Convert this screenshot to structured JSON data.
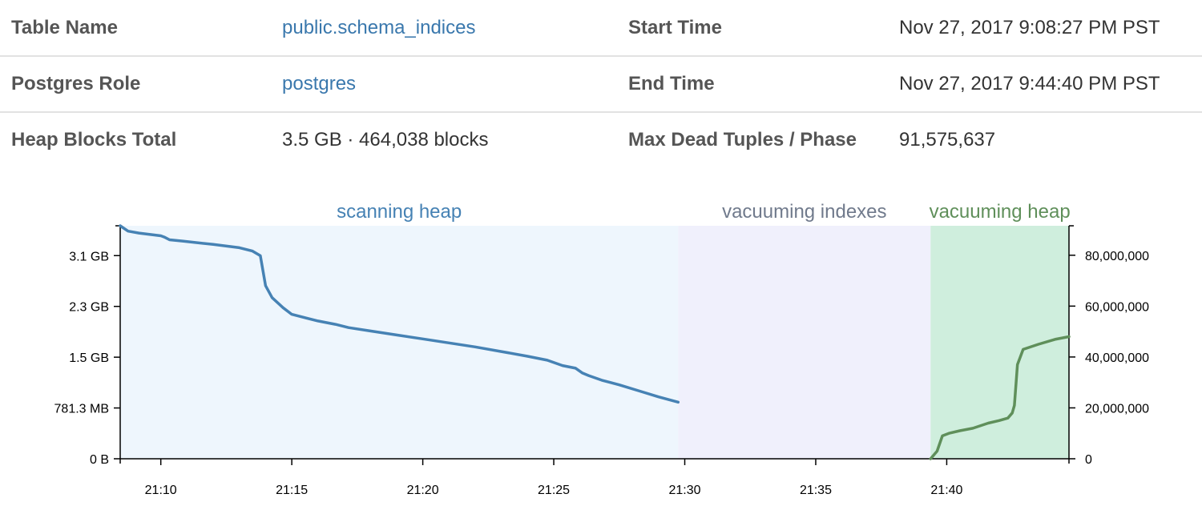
{
  "details": {
    "table_name_label": "Table Name",
    "table_name_value": "public.schema_indices",
    "start_time_label": "Start Time",
    "start_time_value": "Nov 27, 2017 9:08:27 PM PST",
    "postgres_role_label": "Postgres Role",
    "postgres_role_value": "postgres",
    "end_time_label": "End Time",
    "end_time_value": "Nov 27, 2017 9:44:40 PM PST",
    "heap_blocks_label": "Heap Blocks Total",
    "heap_blocks_value": "3.5 GB · 464,038 blocks",
    "max_dead_tuples_label": "Max Dead Tuples / Phase",
    "max_dead_tuples_value": "91,575,637"
  },
  "colors": {
    "link": "#3a78ad",
    "scan_line": "#4682b4",
    "dead_tuples_line": "#5f8f5a",
    "phase_scanning": "#eef6fd",
    "phase_indexes": "#f0f0fc",
    "phase_vacuum_heap": "#cfeedd",
    "label_scanning": "#4682b4",
    "label_indexes": "#707a8c",
    "label_vacuum_heap": "#5f8f5a"
  },
  "chart_data": {
    "type": "line",
    "x_domain": [
      "21:08:27",
      "21:44:40"
    ],
    "x_ticks": [
      "21:10",
      "21:15",
      "21:20",
      "21:25",
      "21:30",
      "21:35",
      "21:40"
    ],
    "y_left_ticks": [
      "0 B",
      "781.3 MB",
      "1.5 GB",
      "2.3 GB",
      "3.1 GB"
    ],
    "y_left_tick_values": [
      0,
      0.763,
      1.5259,
      2.2889,
      3.0518
    ],
    "y_left_range": [
      0,
      3.5
    ],
    "y_right_ticks": [
      "0",
      "20,000,000",
      "40,000,000",
      "60,000,000",
      "80,000,000"
    ],
    "y_right_tick_values": [
      0,
      20000000,
      40000000,
      60000000,
      80000000
    ],
    "y_right_range": [
      0,
      91575637
    ],
    "phases": [
      {
        "name": "scanning heap",
        "start": "21:08:27",
        "end": "21:29:45"
      },
      {
        "name": "vacuuming indexes",
        "start": "21:29:45",
        "end": "21:39:23"
      },
      {
        "name": "vacuuming heap",
        "start": "21:39:23",
        "end": "21:44:40"
      }
    ],
    "series": [
      {
        "axis": "left",
        "points": [
          [
            "21:08:27",
            3.5
          ],
          [
            "21:08:45",
            3.42
          ],
          [
            "21:09:10",
            3.39
          ],
          [
            "21:10:00",
            3.35
          ],
          [
            "21:10:08",
            3.33
          ],
          [
            "21:10:20",
            3.29
          ],
          [
            "21:10:50",
            3.27
          ],
          [
            "21:12:00",
            3.22
          ],
          [
            "21:13:00",
            3.17
          ],
          [
            "21:13:30",
            3.12
          ],
          [
            "21:13:48",
            3.05
          ],
          [
            "21:14:00",
            2.6
          ],
          [
            "21:14:15",
            2.42
          ],
          [
            "21:14:40",
            2.27
          ],
          [
            "21:15:00",
            2.17
          ],
          [
            "21:16:00",
            2.07
          ],
          [
            "21:16:40",
            2.02
          ],
          [
            "21:17:10",
            1.97
          ],
          [
            "21:18:00",
            1.92
          ],
          [
            "21:19:00",
            1.86
          ],
          [
            "21:20:00",
            1.8
          ],
          [
            "21:21:00",
            1.74
          ],
          [
            "21:22:00",
            1.68
          ],
          [
            "21:23:00",
            1.61
          ],
          [
            "21:24:00",
            1.54
          ],
          [
            "21:24:45",
            1.48
          ],
          [
            "21:25:20",
            1.4
          ],
          [
            "21:25:50",
            1.36
          ],
          [
            "21:26:05",
            1.29
          ],
          [
            "21:26:20",
            1.25
          ],
          [
            "21:26:50",
            1.18
          ],
          [
            "21:27:30",
            1.11
          ],
          [
            "21:28:20",
            1.01
          ],
          [
            "21:29:00",
            0.93
          ],
          [
            "21:29:45",
            0.85
          ]
        ]
      },
      {
        "axis": "right",
        "points": [
          [
            "21:39:23",
            0
          ],
          [
            "21:39:38",
            3000000
          ],
          [
            "21:39:50",
            9000000
          ],
          [
            "21:40:05",
            10000000
          ],
          [
            "21:40:30",
            11000000
          ],
          [
            "21:41:00",
            12000000
          ],
          [
            "21:41:35",
            14000000
          ],
          [
            "21:42:00",
            15000000
          ],
          [
            "21:42:20",
            16000000
          ],
          [
            "21:42:30",
            18000000
          ],
          [
            "21:42:35",
            21000000
          ],
          [
            "21:42:42",
            37000000
          ],
          [
            "21:42:55",
            43000000
          ],
          [
            "21:43:30",
            45000000
          ],
          [
            "21:44:10",
            47000000
          ],
          [
            "21:44:40",
            48000000
          ]
        ]
      }
    ]
  }
}
